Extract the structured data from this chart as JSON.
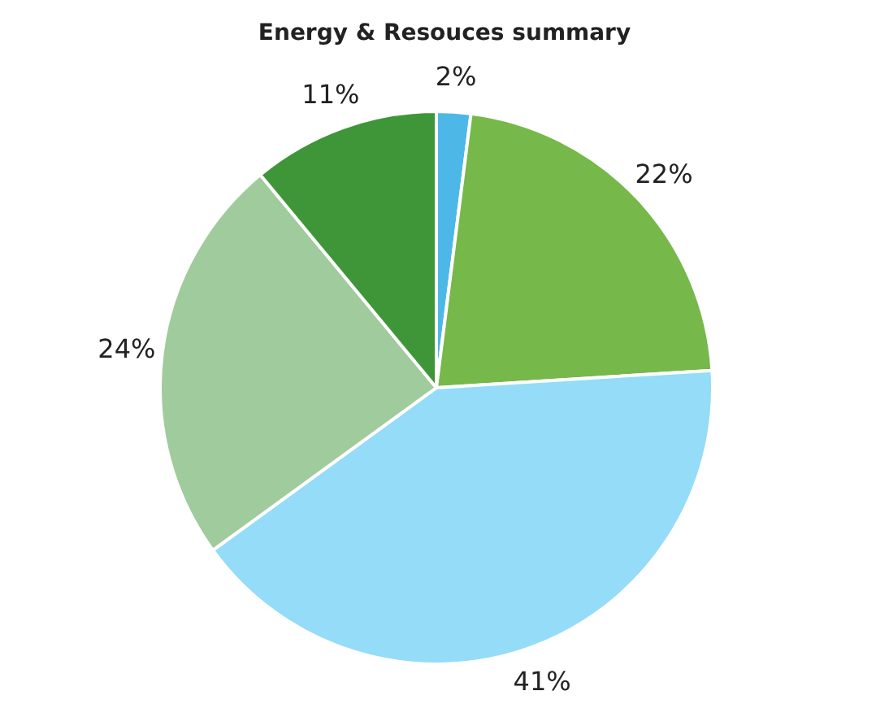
{
  "chart_data": {
    "type": "pie",
    "title": "Energy & Resouces summary",
    "categories": [
      null,
      null,
      null,
      null,
      null
    ],
    "values": [
      2,
      22,
      41,
      24,
      11
    ],
    "colors": [
      "#4db8e8",
      "#76b84a",
      "#94dcf7",
      "#a0cb9c",
      "#3f9638"
    ],
    "value_labels": [
      "2%",
      "22%",
      "41%",
      "24%",
      "11%"
    ]
  }
}
